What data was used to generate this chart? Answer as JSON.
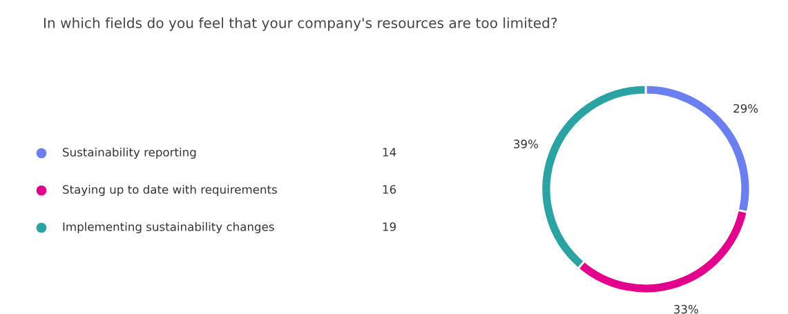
{
  "chart_data": {
    "type": "donut",
    "title": "In which fields do you feel that your company's resources are too limited?",
    "categories": [
      "Sustainability reporting",
      "Staying up to date with requirements",
      "Implementing sustainability changes"
    ],
    "values": [
      14,
      16,
      19
    ],
    "colors": [
      "#6b7ff0",
      "#e3008c",
      "#2ba3a3"
    ],
    "value_labels": [
      "14",
      "16",
      "19"
    ],
    "annotations": [
      "29%",
      "33%",
      "39%"
    ],
    "legend": "left"
  }
}
